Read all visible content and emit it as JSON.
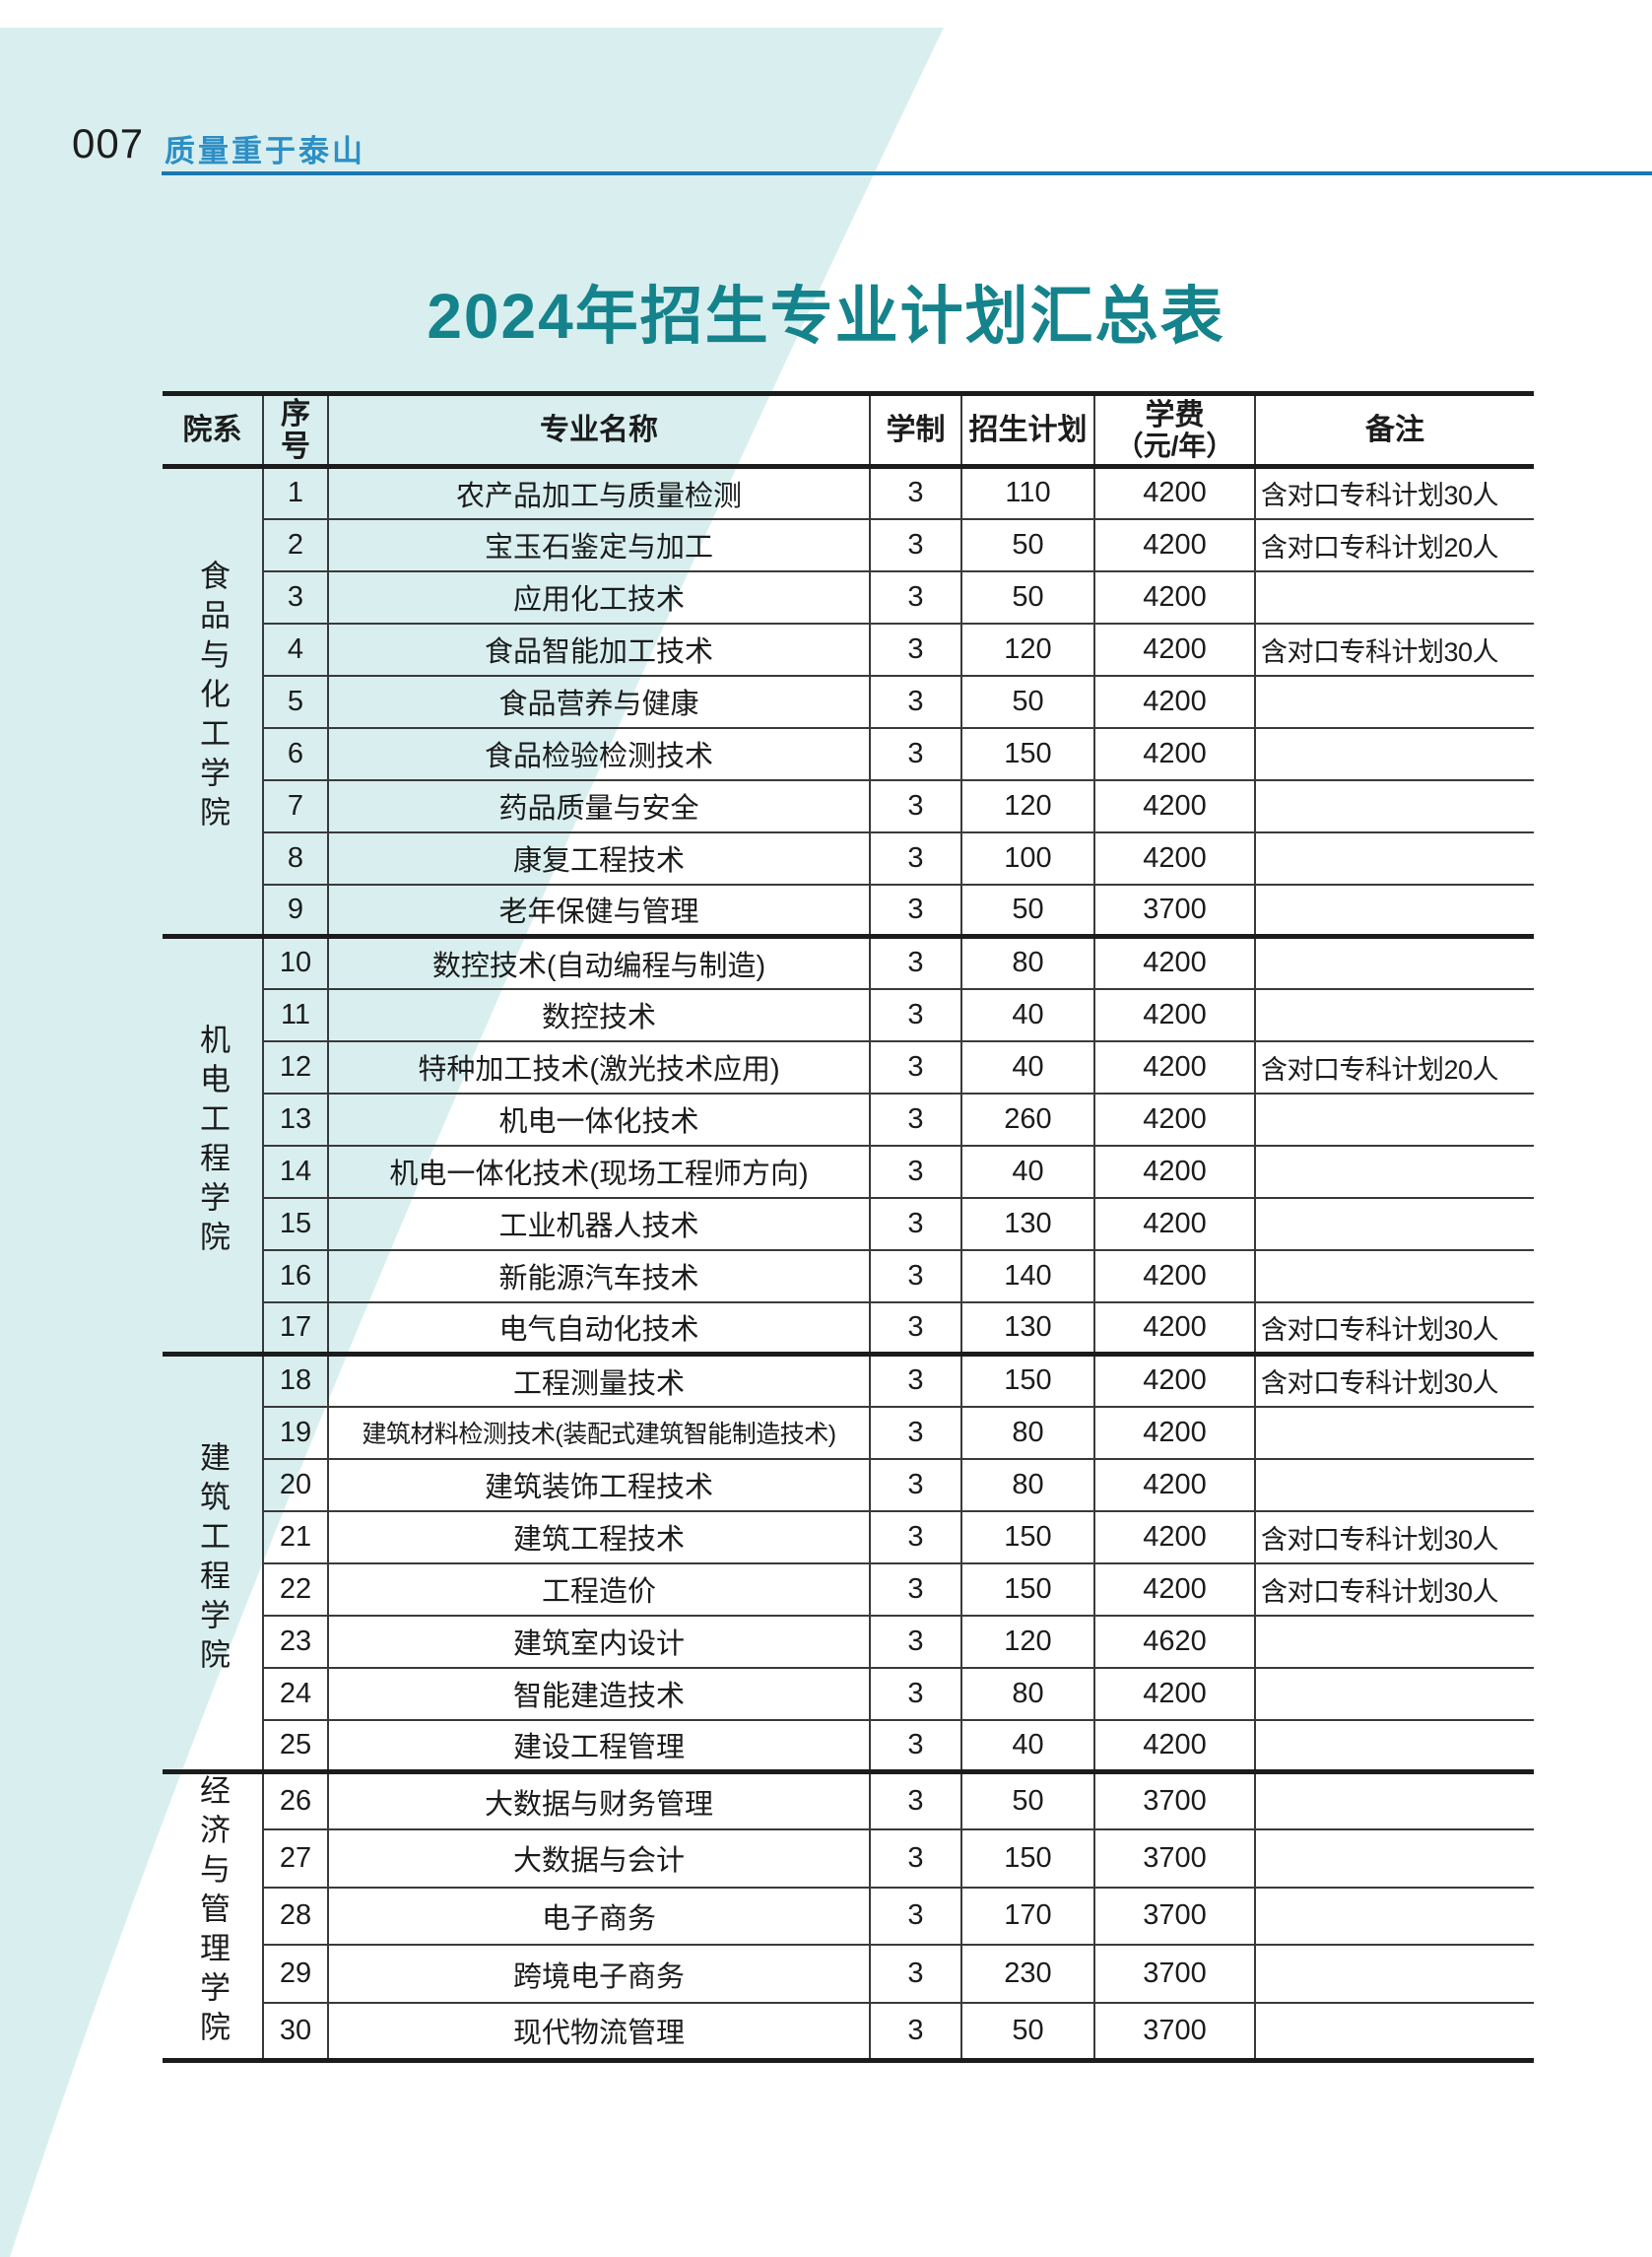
{
  "page": {
    "number": "007",
    "slogan": "质量重于泰山"
  },
  "title": "2024年招生专业计划汇总表",
  "colors": {
    "background_cyan": "#d9efef",
    "slogan_blue": "#2d8fc5",
    "underline_blue": "#1a78b0",
    "title_teal": "#14838b",
    "table_border": "#1c1c1c"
  },
  "table": {
    "headers": {
      "college": "院系",
      "index_line1": "序",
      "index_line2": "号",
      "major": "专业名称",
      "duration": "学制",
      "plan": "招生计划",
      "tuition_line1": "学费",
      "tuition_line2": "（元/年）",
      "note": "备注"
    },
    "groups": [
      {
        "college": "食品与化工学院",
        "rows": [
          {
            "no": "1",
            "major": "农产品加工与质量检测",
            "duration": "3",
            "plan": "110",
            "tuition": "4200",
            "note": "含对口专科计划30人"
          },
          {
            "no": "2",
            "major": "宝玉石鉴定与加工",
            "duration": "3",
            "plan": "50",
            "tuition": "4200",
            "note": "含对口专科计划20人"
          },
          {
            "no": "3",
            "major": "应用化工技术",
            "duration": "3",
            "plan": "50",
            "tuition": "4200",
            "note": ""
          },
          {
            "no": "4",
            "major": "食品智能加工技术",
            "duration": "3",
            "plan": "120",
            "tuition": "4200",
            "note": "含对口专科计划30人"
          },
          {
            "no": "5",
            "major": "食品营养与健康",
            "duration": "3",
            "plan": "50",
            "tuition": "4200",
            "note": ""
          },
          {
            "no": "6",
            "major": "食品检验检测技术",
            "duration": "3",
            "plan": "150",
            "tuition": "4200",
            "note": ""
          },
          {
            "no": "7",
            "major": "药品质量与安全",
            "duration": "3",
            "plan": "120",
            "tuition": "4200",
            "note": ""
          },
          {
            "no": "8",
            "major": "康复工程技术",
            "duration": "3",
            "plan": "100",
            "tuition": "4200",
            "note": ""
          },
          {
            "no": "9",
            "major": "老年保健与管理",
            "duration": "3",
            "plan": "50",
            "tuition": "3700",
            "note": ""
          }
        ]
      },
      {
        "college": "机电工程学院",
        "rows": [
          {
            "no": "10",
            "major": "数控技术(自动编程与制造)",
            "duration": "3",
            "plan": "80",
            "tuition": "4200",
            "note": ""
          },
          {
            "no": "11",
            "major": "数控技术",
            "duration": "3",
            "plan": "40",
            "tuition": "4200",
            "note": ""
          },
          {
            "no": "12",
            "major": "特种加工技术(激光技术应用)",
            "duration": "3",
            "plan": "40",
            "tuition": "4200",
            "note": "含对口专科计划20人"
          },
          {
            "no": "13",
            "major": "机电一体化技术",
            "duration": "3",
            "plan": "260",
            "tuition": "4200",
            "note": ""
          },
          {
            "no": "14",
            "major": "机电一体化技术(现场工程师方向)",
            "duration": "3",
            "plan": "40",
            "tuition": "4200",
            "note": ""
          },
          {
            "no": "15",
            "major": "工业机器人技术",
            "duration": "3",
            "plan": "130",
            "tuition": "4200",
            "note": ""
          },
          {
            "no": "16",
            "major": "新能源汽车技术",
            "duration": "3",
            "plan": "140",
            "tuition": "4200",
            "note": ""
          },
          {
            "no": "17",
            "major": "电气自动化技术",
            "duration": "3",
            "plan": "130",
            "tuition": "4200",
            "note": "含对口专科计划30人"
          }
        ]
      },
      {
        "college": "建筑工程学院",
        "rows": [
          {
            "no": "18",
            "major": "工程测量技术",
            "duration": "3",
            "plan": "150",
            "tuition": "4200",
            "note": "含对口专科计划30人"
          },
          {
            "no": "19",
            "major": "建筑材料检测技术(装配式建筑智能制造技术)",
            "duration": "3",
            "plan": "80",
            "tuition": "4200",
            "note": ""
          },
          {
            "no": "20",
            "major": "建筑装饰工程技术",
            "duration": "3",
            "plan": "80",
            "tuition": "4200",
            "note": ""
          },
          {
            "no": "21",
            "major": "建筑工程技术",
            "duration": "3",
            "plan": "150",
            "tuition": "4200",
            "note": "含对口专科计划30人"
          },
          {
            "no": "22",
            "major": "工程造价",
            "duration": "3",
            "plan": "150",
            "tuition": "4200",
            "note": "含对口专科计划30人"
          },
          {
            "no": "23",
            "major": "建筑室内设计",
            "duration": "3",
            "plan": "120",
            "tuition": "4620",
            "note": ""
          },
          {
            "no": "24",
            "major": "智能建造技术",
            "duration": "3",
            "plan": "80",
            "tuition": "4200",
            "note": ""
          },
          {
            "no": "25",
            "major": "建设工程管理",
            "duration": "3",
            "plan": "40",
            "tuition": "4200",
            "note": ""
          }
        ]
      },
      {
        "college": "经济与管理学院",
        "rows": [
          {
            "no": "26",
            "major": "大数据与财务管理",
            "duration": "3",
            "plan": "50",
            "tuition": "3700",
            "note": ""
          },
          {
            "no": "27",
            "major": "大数据与会计",
            "duration": "3",
            "plan": "150",
            "tuition": "3700",
            "note": ""
          },
          {
            "no": "28",
            "major": "电子商务",
            "duration": "3",
            "plan": "170",
            "tuition": "3700",
            "note": ""
          },
          {
            "no": "29",
            "major": "跨境电子商务",
            "duration": "3",
            "plan": "230",
            "tuition": "3700",
            "note": ""
          },
          {
            "no": "30",
            "major": "现代物流管理",
            "duration": "3",
            "plan": "50",
            "tuition": "3700",
            "note": ""
          }
        ]
      }
    ]
  }
}
